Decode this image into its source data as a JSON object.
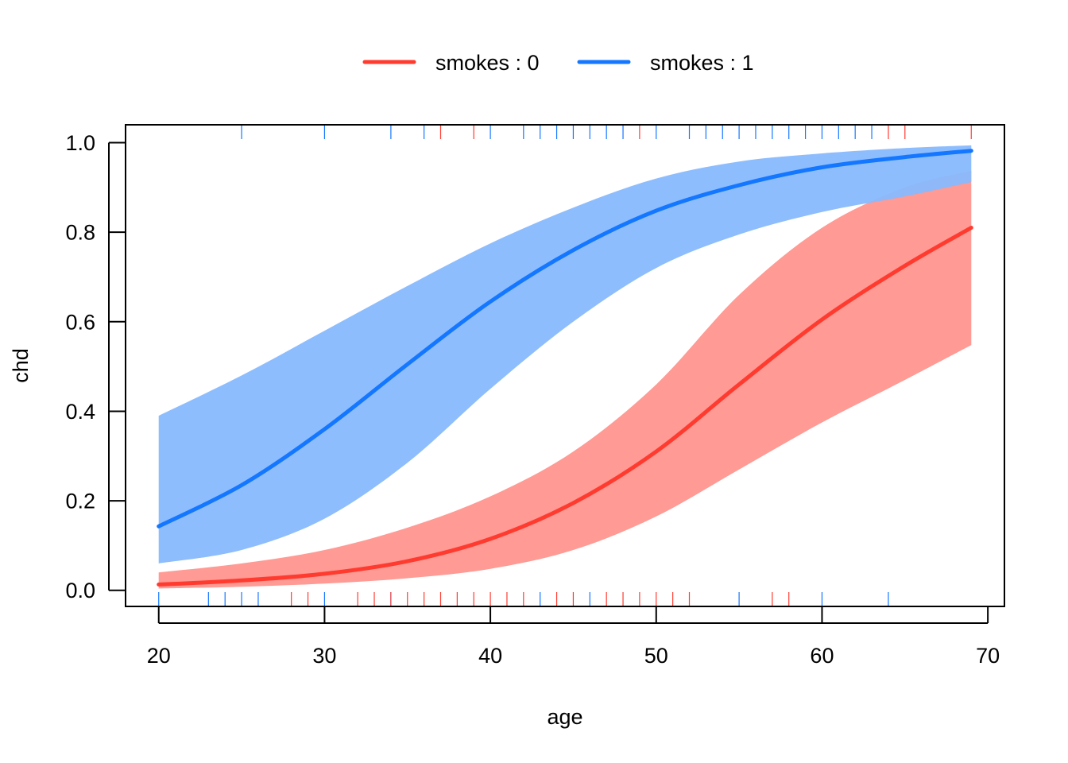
{
  "chart_data": {
    "type": "line",
    "title": "",
    "xlabel": "age",
    "ylabel": "chd",
    "xlim": [
      18,
      71
    ],
    "ylim": [
      -0.036,
      1.04
    ],
    "x_ticks": [
      "20",
      "30",
      "40",
      "50",
      "60",
      "70"
    ],
    "y_ticks": [
      "0.0",
      "0.2",
      "0.4",
      "0.6",
      "0.8",
      "1.0"
    ],
    "legend_position": "top",
    "x": [
      20,
      25,
      30,
      35,
      40,
      45,
      50,
      55,
      60,
      65,
      69
    ],
    "series": [
      {
        "name": "smokes : 0",
        "color": "#FF3B30",
        "band_color": "#FF9A94",
        "values": [
          0.013,
          0.022,
          0.037,
          0.065,
          0.115,
          0.195,
          0.31,
          0.46,
          0.605,
          0.725,
          0.81
        ],
        "lower": [
          0.004,
          0.008,
          0.015,
          0.027,
          0.048,
          0.09,
          0.165,
          0.27,
          0.375,
          0.47,
          0.548
        ],
        "upper": [
          0.04,
          0.06,
          0.09,
          0.14,
          0.21,
          0.31,
          0.46,
          0.66,
          0.81,
          0.9,
          0.937
        ]
      },
      {
        "name": "smokes : 1",
        "color": "#1477FF",
        "band_color": "#88B9FD",
        "values": [
          0.143,
          0.235,
          0.36,
          0.505,
          0.645,
          0.76,
          0.848,
          0.905,
          0.945,
          0.968,
          0.982
        ],
        "lower": [
          0.06,
          0.09,
          0.16,
          0.285,
          0.45,
          0.6,
          0.72,
          0.795,
          0.845,
          0.88,
          0.912
        ],
        "upper": [
          0.39,
          0.48,
          0.58,
          0.68,
          0.775,
          0.855,
          0.92,
          0.958,
          0.976,
          0.988,
          0.994
        ]
      }
    ],
    "rug_bottom": [
      {
        "x": 20,
        "group": "1"
      },
      {
        "x": 23,
        "group": "1"
      },
      {
        "x": 24,
        "group": "1"
      },
      {
        "x": 25,
        "group": "1"
      },
      {
        "x": 26,
        "group": "1"
      },
      {
        "x": 28,
        "group": "0"
      },
      {
        "x": 29,
        "group": "0"
      },
      {
        "x": 30,
        "group": "1"
      },
      {
        "x": 32,
        "group": "0"
      },
      {
        "x": 33,
        "group": "0"
      },
      {
        "x": 34,
        "group": "1"
      },
      {
        "x": 34,
        "group": "0"
      },
      {
        "x": 35,
        "group": "0"
      },
      {
        "x": 36,
        "group": "0"
      },
      {
        "x": 37,
        "group": "0"
      },
      {
        "x": 38,
        "group": "0"
      },
      {
        "x": 39,
        "group": "0"
      },
      {
        "x": 40,
        "group": "0"
      },
      {
        "x": 41,
        "group": "0"
      },
      {
        "x": 42,
        "group": "0"
      },
      {
        "x": 43,
        "group": "1"
      },
      {
        "x": 44,
        "group": "0"
      },
      {
        "x": 45,
        "group": "0"
      },
      {
        "x": 46,
        "group": "1"
      },
      {
        "x": 47,
        "group": "0"
      },
      {
        "x": 48,
        "group": "0"
      },
      {
        "x": 49,
        "group": "0"
      },
      {
        "x": 50,
        "group": "0"
      },
      {
        "x": 51,
        "group": "0"
      },
      {
        "x": 52,
        "group": "0"
      },
      {
        "x": 55,
        "group": "1"
      },
      {
        "x": 57,
        "group": "0"
      },
      {
        "x": 58,
        "group": "0"
      },
      {
        "x": 60,
        "group": "1"
      },
      {
        "x": 64,
        "group": "1"
      }
    ],
    "rug_top": [
      {
        "x": 25,
        "group": "1"
      },
      {
        "x": 30,
        "group": "1"
      },
      {
        "x": 34,
        "group": "1"
      },
      {
        "x": 36,
        "group": "1"
      },
      {
        "x": 37,
        "group": "0"
      },
      {
        "x": 39,
        "group": "0"
      },
      {
        "x": 40,
        "group": "1"
      },
      {
        "x": 42,
        "group": "1"
      },
      {
        "x": 43,
        "group": "1"
      },
      {
        "x": 44,
        "group": "1"
      },
      {
        "x": 45,
        "group": "1"
      },
      {
        "x": 46,
        "group": "1"
      },
      {
        "x": 47,
        "group": "1"
      },
      {
        "x": 48,
        "group": "1"
      },
      {
        "x": 49,
        "group": "0"
      },
      {
        "x": 50,
        "group": "1"
      },
      {
        "x": 52,
        "group": "1"
      },
      {
        "x": 53,
        "group": "1"
      },
      {
        "x": 54,
        "group": "1"
      },
      {
        "x": 55,
        "group": "1"
      },
      {
        "x": 56,
        "group": "1"
      },
      {
        "x": 57,
        "group": "1"
      },
      {
        "x": 58,
        "group": "1"
      },
      {
        "x": 59,
        "group": "1"
      },
      {
        "x": 60,
        "group": "1"
      },
      {
        "x": 61,
        "group": "1"
      },
      {
        "x": 62,
        "group": "1"
      },
      {
        "x": 63,
        "group": "1"
      },
      {
        "x": 64,
        "group": "0"
      },
      {
        "x": 65,
        "group": "0"
      },
      {
        "x": 69,
        "group": "0"
      }
    ]
  }
}
